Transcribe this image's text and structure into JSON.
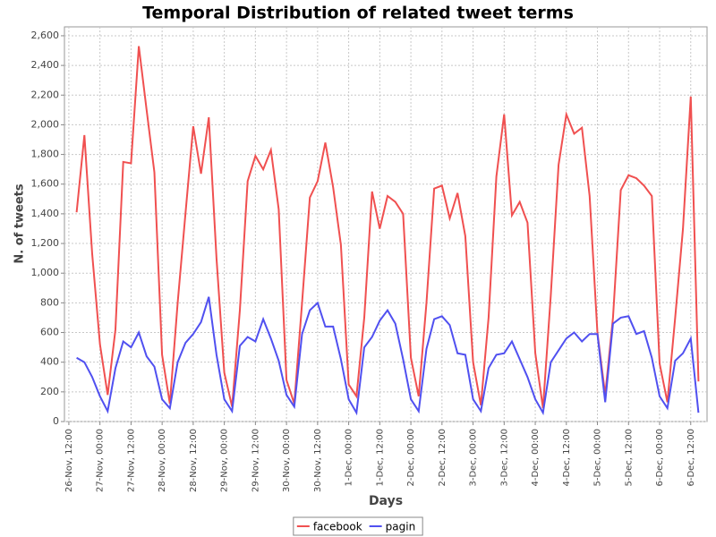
{
  "chart_data": {
    "type": "line",
    "title": "Temporal Distribution of related tweet terms",
    "x_label": "Days",
    "y_label": "N. of tweets",
    "x": [
      15,
      18,
      21,
      24,
      27,
      30,
      33,
      36,
      39,
      42,
      45,
      48,
      51,
      54,
      57,
      60,
      63,
      66,
      69,
      72,
      75,
      78,
      81,
      84,
      87,
      90,
      93,
      96,
      99,
      102,
      105,
      108,
      111,
      114,
      117,
      120,
      123,
      126,
      129,
      132,
      135,
      138,
      141,
      144,
      147,
      150,
      153,
      156,
      159,
      162,
      165,
      168,
      171,
      174,
      177,
      180,
      183,
      186,
      189,
      192,
      195,
      198,
      201,
      204,
      207,
      210,
      213,
      216,
      219,
      222,
      225,
      228,
      231,
      234,
      237,
      240,
      243,
      246,
      249,
      252,
      255
    ],
    "series": [
      {
        "name": "facebook",
        "color": "#f05050",
        "values": [
          1410,
          1930,
          1130,
          520,
          180,
          620,
          1750,
          1740,
          2530,
          2100,
          1680,
          450,
          120,
          800,
          1400,
          1990,
          1670,
          2050,
          1100,
          330,
          100,
          750,
          1620,
          1790,
          1700,
          1830,
          1430,
          280,
          120,
          800,
          1510,
          1620,
          1880,
          1580,
          1190,
          250,
          170,
          700,
          1550,
          1300,
          1520,
          1480,
          1400,
          430,
          170,
          800,
          1570,
          1590,
          1370,
          1540,
          1250,
          400,
          110,
          700,
          1650,
          2070,
          1390,
          1480,
          1340,
          460,
          90,
          850,
          1730,
          2070,
          1940,
          1980,
          1520,
          600,
          180,
          700,
          1560,
          1660,
          1640,
          1590,
          1520,
          390,
          130,
          700,
          1300,
          2190,
          270
        ]
      },
      {
        "name": "pagin",
        "color": "#5050f0",
        "values": [
          430,
          400,
          300,
          170,
          70,
          360,
          540,
          500,
          600,
          440,
          370,
          150,
          90,
          400,
          530,
          590,
          670,
          840,
          450,
          150,
          70,
          510,
          570,
          540,
          690,
          560,
          410,
          180,
          100,
          590,
          750,
          800,
          640,
          640,
          420,
          150,
          60,
          500,
          570,
          680,
          750,
          660,
          420,
          150,
          70,
          490,
          690,
          710,
          650,
          460,
          450,
          150,
          70,
          360,
          450,
          460,
          540,
          420,
          300,
          150,
          60,
          400,
          480,
          560,
          600,
          540,
          590,
          590,
          130,
          660,
          700,
          710,
          590,
          610,
          430,
          170,
          90,
          410,
          460,
          560,
          60
        ]
      }
    ],
    "xlim": [
      10.3,
      258.3
    ],
    "xticks": [
      {
        "value": 12,
        "label": "26-Nov, 12:00"
      },
      {
        "value": 24,
        "label": "27-Nov, 00:00"
      },
      {
        "value": 36,
        "label": "27-Nov, 12:00"
      },
      {
        "value": 48,
        "label": "28-Nov, 00:00"
      },
      {
        "value": 60,
        "label": "28-Nov, 12:00"
      },
      {
        "value": 72,
        "label": "29-Nov, 00:00"
      },
      {
        "value": 84,
        "label": "29-Nov, 12:00"
      },
      {
        "value": 96,
        "label": "30-Nov, 00:00"
      },
      {
        "value": 108,
        "label": "30-Nov, 12:00"
      },
      {
        "value": 120,
        "label": "1-Dec, 00:00"
      },
      {
        "value": 132,
        "label": "1-Dec, 12:00"
      },
      {
        "value": 144,
        "label": "2-Dec, 00:00"
      },
      {
        "value": 156,
        "label": "2-Dec, 12:00"
      },
      {
        "value": 168,
        "label": "3-Dec, 00:00"
      },
      {
        "value": 180,
        "label": "3-Dec, 12:00"
      },
      {
        "value": 192,
        "label": "4-Dec, 00:00"
      },
      {
        "value": 204,
        "label": "4-Dec, 12:00"
      },
      {
        "value": 216,
        "label": "5-Dec, 00:00"
      },
      {
        "value": 228,
        "label": "5-Dec, 12:00"
      },
      {
        "value": 240,
        "label": "6-Dec, 00:00"
      },
      {
        "value": 252,
        "label": "6-Dec, 12:00"
      }
    ],
    "ylim": [
      0,
      2660
    ],
    "yticks": [
      0,
      200,
      400,
      600,
      800,
      {
        "value": 1000,
        "label": "1,000"
      },
      {
        "value": 1200,
        "label": "1,200"
      },
      {
        "value": 1400,
        "label": "1,400"
      },
      {
        "value": 1600,
        "label": "1,600"
      },
      {
        "value": 1800,
        "label": "1,800"
      },
      {
        "value": 2000,
        "label": "2,000"
      },
      {
        "value": 2200,
        "label": "2,200"
      },
      {
        "value": 2400,
        "label": "2,400"
      },
      {
        "value": 2600,
        "label": "2,600"
      }
    ],
    "grid": true,
    "legend": "bottom"
  }
}
